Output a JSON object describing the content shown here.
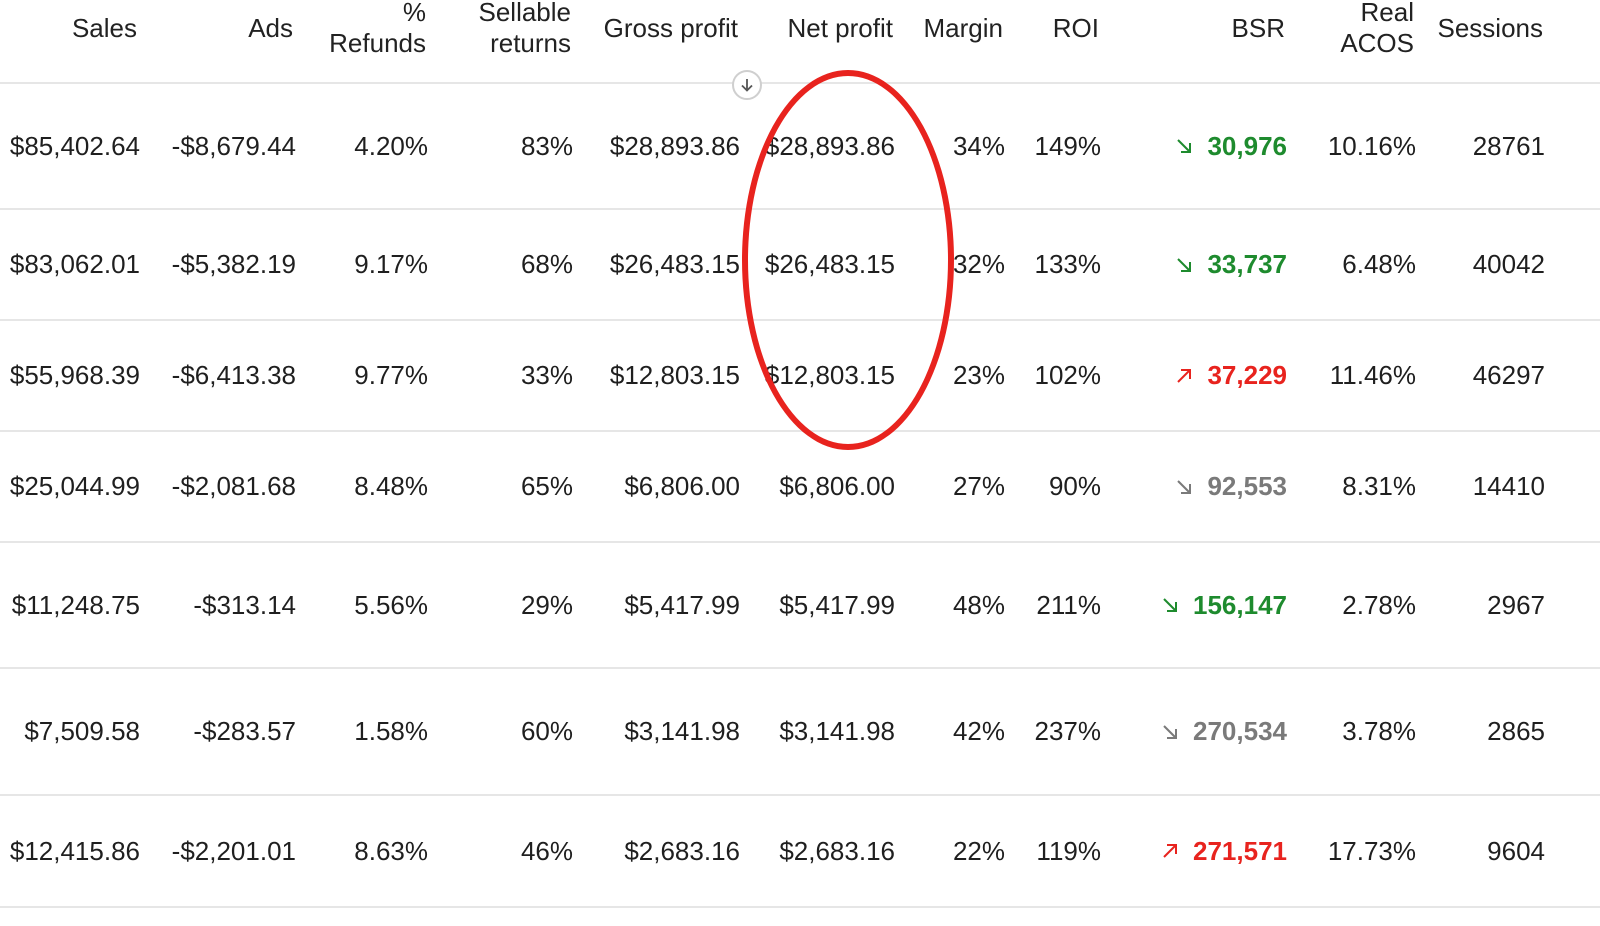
{
  "columns": {
    "sales": [
      "Sales"
    ],
    "ads": [
      "Ads"
    ],
    "refunds": [
      "%",
      "Refunds"
    ],
    "sellable_returns": [
      "Sellable",
      "returns"
    ],
    "gross_profit": [
      "Gross profit"
    ],
    "net_profit": [
      "Net profit"
    ],
    "margin": [
      "Margin"
    ],
    "roi": [
      "ROI"
    ],
    "bsr": [
      "BSR"
    ],
    "real_acos": [
      "Real",
      "ACOS"
    ],
    "sessions": [
      "Sessions"
    ]
  },
  "sort_icon": "arrow-down-icon",
  "colors": {
    "bsr_down_good": "#1e8b2e",
    "bsr_up_bad": "#e8231e",
    "bsr_neutral": "#7a7a7a",
    "annotation": "#e8231e"
  },
  "rows": [
    {
      "sales": "$85,402.64",
      "ads": "-$8,679.44",
      "refunds": "4.20%",
      "sellable_returns": "83%",
      "gross_profit": "$28,893.86",
      "net_profit": "$28,893.86",
      "margin": "34%",
      "roi": "149%",
      "bsr": "30,976",
      "bsr_trend": "down",
      "bsr_status": "good",
      "real_acos": "10.16%",
      "sessions": "28761"
    },
    {
      "sales": "$83,062.01",
      "ads": "-$5,382.19",
      "refunds": "9.17%",
      "sellable_returns": "68%",
      "gross_profit": "$26,483.15",
      "net_profit": "$26,483.15",
      "margin": "32%",
      "roi": "133%",
      "bsr": "33,737",
      "bsr_trend": "down",
      "bsr_status": "good",
      "real_acos": "6.48%",
      "sessions": "40042"
    },
    {
      "sales": "$55,968.39",
      "ads": "-$6,413.38",
      "refunds": "9.77%",
      "sellable_returns": "33%",
      "gross_profit": "$12,803.15",
      "net_profit": "$12,803.15",
      "margin": "23%",
      "roi": "102%",
      "bsr": "37,229",
      "bsr_trend": "up",
      "bsr_status": "bad",
      "real_acos": "11.46%",
      "sessions": "46297"
    },
    {
      "sales": "$25,044.99",
      "ads": "-$2,081.68",
      "refunds": "8.48%",
      "sellable_returns": "65%",
      "gross_profit": "$6,806.00",
      "net_profit": "$6,806.00",
      "margin": "27%",
      "roi": "90%",
      "bsr": "92,553",
      "bsr_trend": "down",
      "bsr_status": "neutral",
      "real_acos": "8.31%",
      "sessions": "14410"
    },
    {
      "sales": "$11,248.75",
      "ads": "-$313.14",
      "refunds": "5.56%",
      "sellable_returns": "29%",
      "gross_profit": "$5,417.99",
      "net_profit": "$5,417.99",
      "margin": "48%",
      "roi": "211%",
      "bsr": "156,147",
      "bsr_trend": "down",
      "bsr_status": "good",
      "real_acos": "2.78%",
      "sessions": "2967"
    },
    {
      "sales": "$7,509.58",
      "ads": "-$283.57",
      "refunds": "1.58%",
      "sellable_returns": "60%",
      "gross_profit": "$3,141.98",
      "net_profit": "$3,141.98",
      "margin": "42%",
      "roi": "237%",
      "bsr": "270,534",
      "bsr_trend": "down",
      "bsr_status": "neutral",
      "real_acos": "3.78%",
      "sessions": "2865"
    },
    {
      "sales": "$12,415.86",
      "ads": "-$2,201.01",
      "refunds": "8.63%",
      "sellable_returns": "46%",
      "gross_profit": "$2,683.16",
      "net_profit": "$2,683.16",
      "margin": "22%",
      "roi": "119%",
      "bsr": "271,571",
      "bsr_trend": "up",
      "bsr_status": "bad",
      "real_acos": "17.73%",
      "sessions": "9604"
    }
  ]
}
